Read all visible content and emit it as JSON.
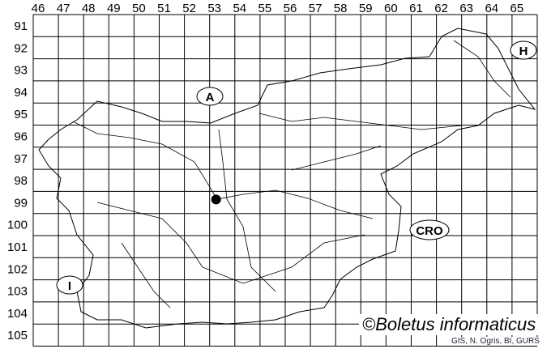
{
  "grid": {
    "columns": [
      "46",
      "47",
      "48",
      "49",
      "50",
      "51",
      "52",
      "53",
      "54",
      "55",
      "56",
      "57",
      "58",
      "59",
      "60",
      "61",
      "62",
      "63",
      "64",
      "65"
    ],
    "rows": [
      "91",
      "92",
      "93",
      "94",
      "95",
      "96",
      "97",
      "98",
      "99",
      "100",
      "101",
      "102",
      "103",
      "104",
      "105"
    ]
  },
  "country_labels": {
    "austria": "A",
    "hungary": "H",
    "croatia": "CRO",
    "italy": "I"
  },
  "occurrences": [
    {
      "column": "53",
      "row": "99"
    }
  ],
  "credit": "©Boletus informaticus",
  "source": "GIS, N. Ogris, BI, GURS",
  "colors": {
    "lines": "#000000",
    "dot": "#000000",
    "background": "#ffffff"
  }
}
